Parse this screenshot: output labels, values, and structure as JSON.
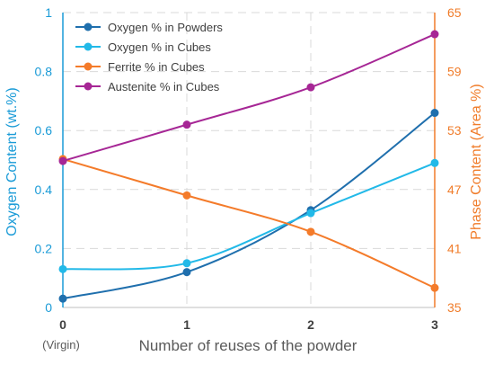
{
  "chart_data": {
    "type": "line",
    "x": [
      0,
      1,
      2,
      3
    ],
    "x_tick_labels": [
      "0",
      "1",
      "2",
      "3"
    ],
    "x_sub_labels": [
      "(Virgin)",
      "",
      "",
      ""
    ],
    "xlabel": "Number of reuses of the powder",
    "ylabel_left": "Oxygen Content (wt.%)",
    "ylabel_right": "Phase Content (Area %)",
    "ylim_left": [
      0,
      1
    ],
    "yticks_left": [
      0,
      0.2,
      0.4,
      0.6,
      0.8,
      1
    ],
    "ytick_labels_left": [
      "0",
      "0.2",
      "0.4",
      "0.6",
      "0.8",
      "1"
    ],
    "ylim_right": [
      35,
      65
    ],
    "yticks_right": [
      35,
      41,
      47,
      53,
      59,
      65
    ],
    "ytick_labels_right": [
      "35",
      "41",
      "47",
      "53",
      "59",
      "65"
    ],
    "grid": "dashed",
    "legend_position": "top-left",
    "axis_colors": {
      "left": "#1a9bd7",
      "right": "#f07c2a"
    },
    "series": [
      {
        "name": "Oxygen % in Powders",
        "axis": "left",
        "color": "#1f6fad",
        "values": [
          0.03,
          0.12,
          0.33,
          0.66
        ]
      },
      {
        "name": "Oxygen % in Cubes",
        "axis": "left",
        "color": "#22b9e8",
        "values": [
          0.13,
          0.15,
          0.32,
          0.49
        ]
      },
      {
        "name": "Ferrite % in Cubes",
        "axis": "right",
        "color": "#f47b2a",
        "values": [
          50.1,
          46.4,
          42.7,
          37.0
        ]
      },
      {
        "name": "Austenite % in Cubes",
        "axis": "right",
        "color": "#a62695",
        "values": [
          49.9,
          53.6,
          57.4,
          62.8
        ]
      }
    ]
  }
}
